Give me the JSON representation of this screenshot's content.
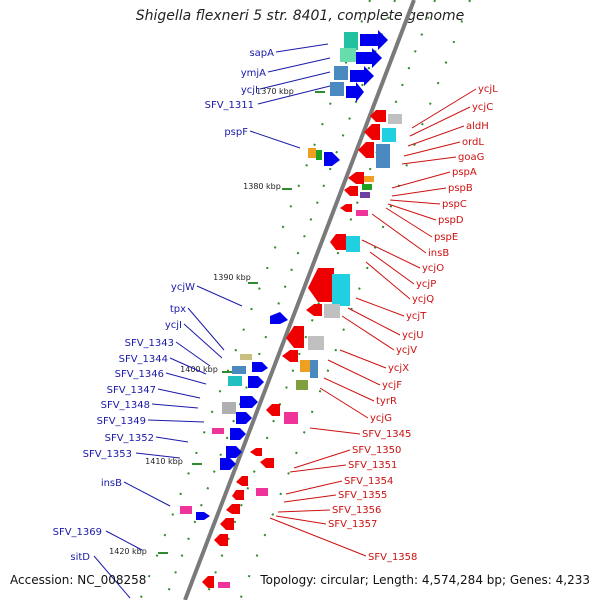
{
  "header": {
    "title": "Shigella flexneri 5 str. 8401, complete genome"
  },
  "footer": {
    "accession": "Accession: NC_008258",
    "topology": "Topology: circular; Length: 4,574,284 bp; Genes: 4,233"
  },
  "ticks": [
    "1370 kbp",
    "1380 kbp",
    "1390 kbp",
    "1400 kbp",
    "1410 kbp",
    "1420 kbp"
  ],
  "genes_left": [
    "sapA",
    "ymjA",
    "ycjI",
    "SFV_1311",
    "pspF",
    "ycjW",
    "tpx",
    "ycjI",
    "SFV_1343",
    "SFV_1344",
    "SFV_1346",
    "SFV_1347",
    "SFV_1348",
    "SFV_1349",
    "SFV_1352",
    "SFV_1353",
    "insB",
    "SFV_1369",
    "sitD"
  ],
  "genes_right": [
    "ycjL",
    "ycjC",
    "aldH",
    "ordL",
    "goaG",
    "pspA",
    "pspB",
    "pspC",
    "pspD",
    "pspE",
    "insB",
    "ycjO",
    "ycjP",
    "ycjQ",
    "ycjT",
    "ycjU",
    "ycjV",
    "ycjX",
    "ycjF",
    "tyrR",
    "ycjG",
    "SFV_1345",
    "SFV_1350",
    "SFV_1351",
    "SFV_1354",
    "SFV_1355",
    "SFV_1356",
    "SFV_1357",
    "SFV_1358"
  ],
  "colors": {
    "forward": "#0000ee",
    "reverse": "#ee0000",
    "backbone": "#808080",
    "tick": "#2e8b2e"
  }
}
